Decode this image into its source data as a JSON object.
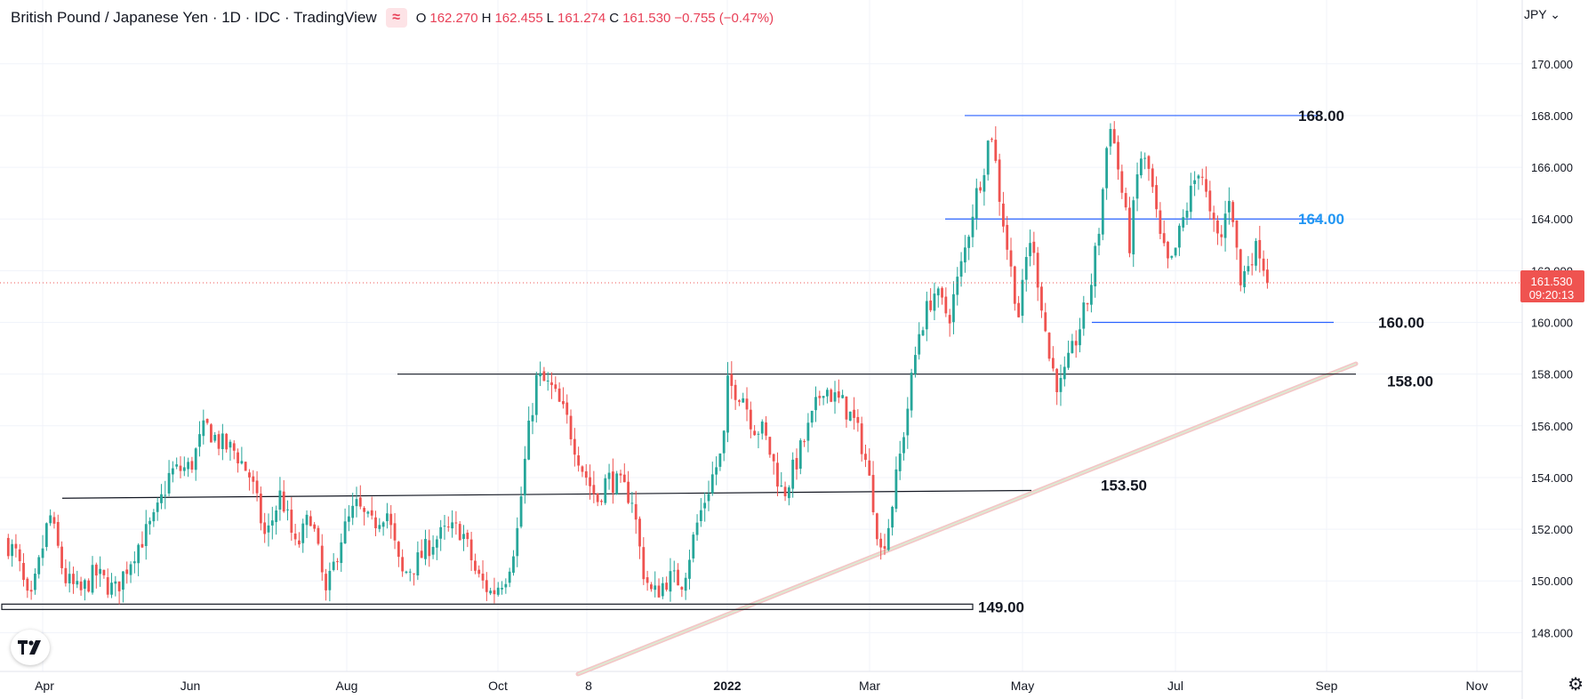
{
  "header": {
    "title": "British Pound / Japanese Yen · 1D · IDC · TradingView",
    "badge_icon": "≈",
    "ohlc": {
      "o": "162.270",
      "h": "162.455",
      "l": "161.274",
      "c": "161.530",
      "chg": "−0.755 (−0.47%)"
    },
    "currency": "JPY"
  },
  "price_tag": {
    "price": "161.530",
    "countdown": "09:20:13"
  },
  "colors": {
    "up": "#26a69a",
    "down": "#ef5350",
    "level_blue": "#2962ff",
    "label_blue": "#2196f3",
    "grid": "#f0f3fa",
    "axis_text": "#131722",
    "price_tag_bg": "#ef5350"
  },
  "chart_data": {
    "type": "candlestick",
    "symbol": "GBPJPY",
    "interval": "1D",
    "y_axis": {
      "ylim": [
        146.5,
        171.3
      ],
      "ticks": [
        "148.000",
        "150.000",
        "152.000",
        "154.000",
        "156.000",
        "158.000",
        "160.000",
        "162.000",
        "164.000",
        "166.000",
        "168.000",
        "170.000"
      ]
    },
    "x_axis": {
      "ticks": [
        "Apr",
        "Jun",
        "Aug",
        "Oct",
        "8",
        "2022",
        "Mar",
        "May",
        "Jul",
        "Sep",
        "Nov"
      ],
      "bold_tick": "2022"
    },
    "current_price": 161.53,
    "levels": [
      {
        "label": "168.00",
        "price": 168.0,
        "color": "blue"
      },
      {
        "label": "164.00",
        "price": 164.0,
        "color": "blue"
      },
      {
        "label": "160.00",
        "price": 160.0,
        "color": "blue"
      },
      {
        "label": "158.00",
        "price": 158.0,
        "color": "black"
      },
      {
        "label": "153.50",
        "price": 153.5,
        "color": "black"
      },
      {
        "label": "149.00",
        "price": 149.0,
        "color": "black"
      }
    ],
    "trendline": {
      "from_price": 146.4,
      "to_price": 158.4
    },
    "price_path": [
      [
        0,
        151.6
      ],
      [
        0.012,
        151.0
      ],
      [
        0.025,
        148.9
      ],
      [
        0.045,
        152.6
      ],
      [
        0.06,
        150.1
      ],
      [
        0.075,
        149.5
      ],
      [
        0.09,
        150.3
      ],
      [
        0.11,
        149.6
      ],
      [
        0.13,
        151.2
      ],
      [
        0.15,
        152.4
      ],
      [
        0.165,
        154.2
      ],
      [
        0.185,
        154.4
      ],
      [
        0.2,
        156.0
      ],
      [
        0.215,
        155.3
      ],
      [
        0.23,
        155.0
      ],
      [
        0.245,
        154.0
      ],
      [
        0.26,
        151.6
      ],
      [
        0.275,
        153.4
      ],
      [
        0.29,
        151.2
      ],
      [
        0.305,
        152.6
      ],
      [
        0.32,
        149.4
      ],
      [
        0.335,
        151.7
      ],
      [
        0.35,
        152.9
      ],
      [
        0.365,
        152.1
      ],
      [
        0.38,
        152.8
      ],
      [
        0.395,
        150.2
      ],
      [
        0.41,
        150.7
      ],
      [
        0.425,
        151.5
      ],
      [
        0.44,
        151.9
      ],
      [
        0.455,
        152.0
      ],
      [
        0.47,
        150.2
      ],
      [
        0.485,
        149.5
      ],
      [
        0.5,
        150.3
      ],
      [
        0.51,
        151.8
      ],
      [
        0.52,
        155.3
      ],
      [
        0.53,
        157.9
      ],
      [
        0.545,
        157.4
      ],
      [
        0.56,
        156.2
      ],
      [
        0.575,
        154.4
      ],
      [
        0.59,
        153.1
      ],
      [
        0.6,
        154.0
      ],
      [
        0.615,
        153.6
      ],
      [
        0.625,
        153.2
      ],
      [
        0.635,
        150.5
      ],
      [
        0.645,
        149.4
      ],
      [
        0.66,
        150.1
      ],
      [
        0.675,
        150.0
      ],
      [
        0.69,
        152.3
      ],
      [
        0.705,
        154.1
      ],
      [
        0.715,
        155.0
      ],
      [
        0.72,
        157.6
      ],
      [
        0.735,
        157.2
      ],
      [
        0.745,
        156.0
      ],
      [
        0.755,
        155.8
      ],
      [
        0.765,
        154.6
      ],
      [
        0.775,
        153.3
      ],
      [
        0.79,
        154.8
      ],
      [
        0.805,
        156.4
      ],
      [
        0.815,
        157.6
      ],
      [
        0.825,
        157.1
      ],
      [
        0.835,
        156.8
      ],
      [
        0.845,
        156.2
      ],
      [
        0.855,
        155.1
      ],
      [
        0.865,
        153.0
      ],
      [
        0.872,
        151.1
      ],
      [
        0.88,
        152.2
      ],
      [
        0.89,
        154.5
      ],
      [
        0.9,
        157.0
      ],
      [
        0.91,
        159.6
      ],
      [
        0.925,
        161.2
      ],
      [
        0.94,
        160.2
      ],
      [
        0.955,
        162.6
      ],
      [
        0.965,
        164.6
      ],
      [
        0.975,
        166.1
      ],
      [
        0.982,
        167.6
      ],
      [
        0.99,
        165.0
      ],
      [
        1.0,
        162.4
      ],
      [
        1.01,
        160.2
      ],
      [
        1.02,
        163.4
      ],
      [
        1.03,
        161.4
      ],
      [
        1.04,
        158.6
      ],
      [
        1.05,
        157.4
      ],
      [
        1.06,
        158.5
      ],
      [
        1.07,
        159.8
      ],
      [
        1.08,
        161.1
      ],
      [
        1.09,
        163.8
      ],
      [
        1.1,
        168.0
      ],
      [
        1.11,
        165.6
      ],
      [
        1.12,
        163.0
      ],
      [
        1.13,
        166.5
      ],
      [
        1.14,
        165.8
      ],
      [
        1.15,
        163.2
      ],
      [
        1.16,
        162.0
      ],
      [
        1.17,
        163.5
      ],
      [
        1.18,
        164.9
      ],
      [
        1.19,
        166.2
      ],
      [
        1.2,
        164.0
      ],
      [
        1.21,
        163.0
      ],
      [
        1.22,
        165.2
      ],
      [
        1.23,
        161.4
      ],
      [
        1.24,
        162.6
      ],
      [
        1.25,
        162.9
      ],
      [
        1.257,
        161.53
      ]
    ]
  },
  "nav": {
    "logo_icon": "tradingview-logo-icon",
    "settings_icon": "gear-icon"
  }
}
